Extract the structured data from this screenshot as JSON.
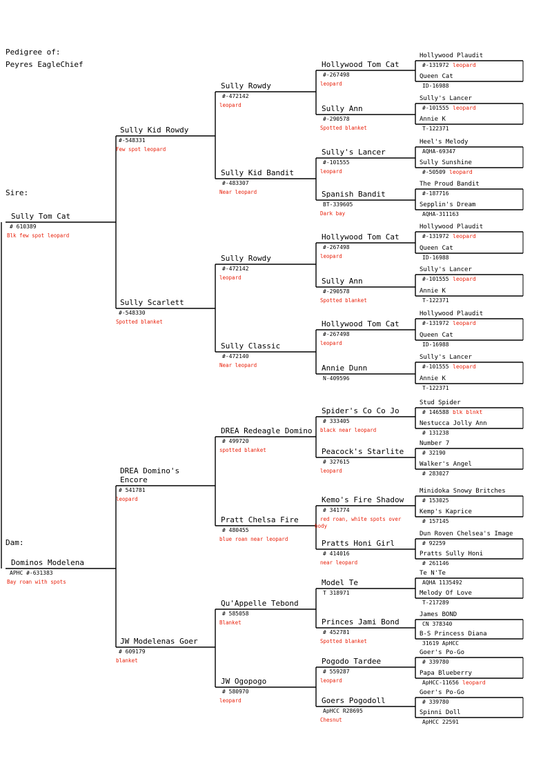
{
  "header": {
    "pedigree_of_label": "Pedigree of:",
    "horse_name": "Peyres EagleChief"
  },
  "labels": {
    "sire": "Sire:",
    "dam": "Dam:"
  },
  "gen1": [
    {
      "name": "Sully Tom Cat",
      "reg": "# 610389",
      "color": "Blk few spot leopard"
    },
    {
      "name": "Dominos Modelena",
      "reg": "APHC #-631383",
      "color": "Bay roan with spots"
    }
  ],
  "gen2": [
    {
      "name": "Sully Kid Rowdy",
      "reg": "#-548331",
      "color": "Few spot leopard"
    },
    {
      "name": "Sully Scarlett",
      "reg": "#-548330",
      "color": "Spotted blanket"
    },
    {
      "name": "DREA Domino's",
      "name2": "Encore",
      "reg": "# 541781",
      "color": "leopard"
    },
    {
      "name": "JW Modelenas Goer",
      "reg": "# 609179",
      "color": "blanket"
    }
  ],
  "gen3": [
    {
      "name": "Sully Rowdy",
      "reg": "#-472142",
      "color": "leopard"
    },
    {
      "name": "Sully Kid Bandit",
      "reg": "#-483307",
      "color": "Near leopard"
    },
    {
      "name": "Sully Rowdy",
      "reg": "#-472142",
      "color": "leopard"
    },
    {
      "name": "Sully Classic",
      "reg": "#-472140",
      "color": "Near leopard"
    },
    {
      "name": "DREA Redeagle Domino",
      "reg": "# 499720",
      "color": "spotted blanket"
    },
    {
      "name": "Pratt Chelsa Fire",
      "reg": "# 480455",
      "color": "blue roan near leopard"
    },
    {
      "name": "Qu'Appelle Tebond",
      "reg": "# 585058",
      "color": "Blanket"
    },
    {
      "name": "JW Ogopogo",
      "reg": "# 580970",
      "color": "leopard"
    }
  ],
  "gen4": [
    {
      "name": "Hollywood Tom Cat",
      "reg": "#-267498",
      "color": "leopard"
    },
    {
      "name": "Sully Ann",
      "reg": "#-290578",
      "color": "Spotted blanket"
    },
    {
      "name": "Sully's Lancer",
      "reg": "#-101555",
      "color": "leopard"
    },
    {
      "name": "Spanish Bandit",
      "reg": "BT-339605",
      "color": "Dark bay"
    },
    {
      "name": "Hollywood Tom Cat",
      "reg": "#-267498",
      "color": "leopard"
    },
    {
      "name": "Sully Ann",
      "reg": "#-290578",
      "color": "Spotted blanket"
    },
    {
      "name": "Hollywood Tom Cat",
      "reg": "#-267498",
      "color": "leopard"
    },
    {
      "name": "Annie Dunn",
      "reg": "N-409596",
      "color": ""
    },
    {
      "name": "Spider's Co Co Jo",
      "reg": "# 333405",
      "color": "black near leopard"
    },
    {
      "name": "Peacock's Starlite",
      "reg": "# 327615",
      "color": "leopard"
    },
    {
      "name": "Kemo's Fire Shadow",
      "reg": "# 341774",
      "color": "red roan, white spots over",
      "color2": "body"
    },
    {
      "name": "Pratts Honi Girl",
      "reg": "# 414016",
      "color": "near leopard"
    },
    {
      "name": "Model Te",
      "reg": "T 318971",
      "color": ""
    },
    {
      "name": "Princes Jami Bond",
      "reg": "# 452781",
      "color": "Spotted blanket"
    },
    {
      "name": "Pogodo Tardee",
      "reg": "# 559287",
      "color": "leopard"
    },
    {
      "name": "Goers Pogodoll",
      "reg": "ApHCC R28695",
      "color": "Chesnut"
    }
  ],
  "gen5": [
    {
      "name": "Hollywood Plaudit",
      "reg": "#-131972",
      "color": "leopard"
    },
    {
      "name": "Queen Cat",
      "reg": "ID-16988",
      "color": ""
    },
    {
      "name": "Sully's Lancer",
      "reg": "#-101555",
      "color": "leopard"
    },
    {
      "name": "Annie K",
      "reg": "T-122371",
      "color": ""
    },
    {
      "name": "Heel's Melody",
      "reg": "AQHA-69347",
      "color": ""
    },
    {
      "name": "Sully Sunshine",
      "reg": "#-50509",
      "color": "leopard"
    },
    {
      "name": "The Proud Bandit",
      "reg": "#-187716",
      "color": ""
    },
    {
      "name": "Sepplin's Dream",
      "reg": "AQHA-311163",
      "color": ""
    },
    {
      "name": "Hollywood Plaudit",
      "reg": "#-131972",
      "color": "leopard"
    },
    {
      "name": "Queen Cat",
      "reg": "ID-16988",
      "color": ""
    },
    {
      "name": "Sully's Lancer",
      "reg": "#-101555",
      "color": "leopard"
    },
    {
      "name": "Annie K",
      "reg": "T-122371",
      "color": ""
    },
    {
      "name": "Hollywood Plaudit",
      "reg": "#-131972",
      "color": "leopard"
    },
    {
      "name": "Queen Cat",
      "reg": "ID-16988",
      "color": ""
    },
    {
      "name": "Sully's Lancer",
      "reg": "#-101555",
      "color": "leopard"
    },
    {
      "name": "Annie K",
      "reg": "T-122371",
      "color": ""
    },
    {
      "name": "Stud Spider",
      "reg": "# 146588",
      "color": "blk blnkt"
    },
    {
      "name": "Nestucca Jolly Ann",
      "reg": "# 131238",
      "color": ""
    },
    {
      "name": "Number 7",
      "reg": "# 32190",
      "color": ""
    },
    {
      "name": "Walker's Angel",
      "reg": "# 283027",
      "color": ""
    },
    {
      "name": "Minidoka Snowy Britches",
      "reg": "# 153025",
      "color": ""
    },
    {
      "name": "Kemp's Kaprice",
      "reg": "# 157145",
      "color": ""
    },
    {
      "name": "Dun Roven Chelsea's Image",
      "reg": "# 92259",
      "color": ""
    },
    {
      "name": "Pratts Sully Honi",
      "reg": "# 261146",
      "color": ""
    },
    {
      "name": "Te N'Te",
      "reg": "AQHA 1135492",
      "color": ""
    },
    {
      "name": "Melody Of Love",
      "reg": "T-217289",
      "color": ""
    },
    {
      "name": "James BOND",
      "reg": "CN 378340",
      "color": ""
    },
    {
      "name": "B-S Princess Diana",
      "reg": "31619 ApHCC",
      "color": ""
    },
    {
      "name": "Goer's Po-Go",
      "reg": "# 339780",
      "color": ""
    },
    {
      "name": "Papa Blueberry",
      "reg": "ApHCC-11656",
      "color": "leopard"
    },
    {
      "name": "Goer's Po-Go",
      "reg": "# 339780",
      "color": ""
    },
    {
      "name": "Spinni Doll",
      "reg": "ApHCC 22591",
      "color": ""
    }
  ]
}
